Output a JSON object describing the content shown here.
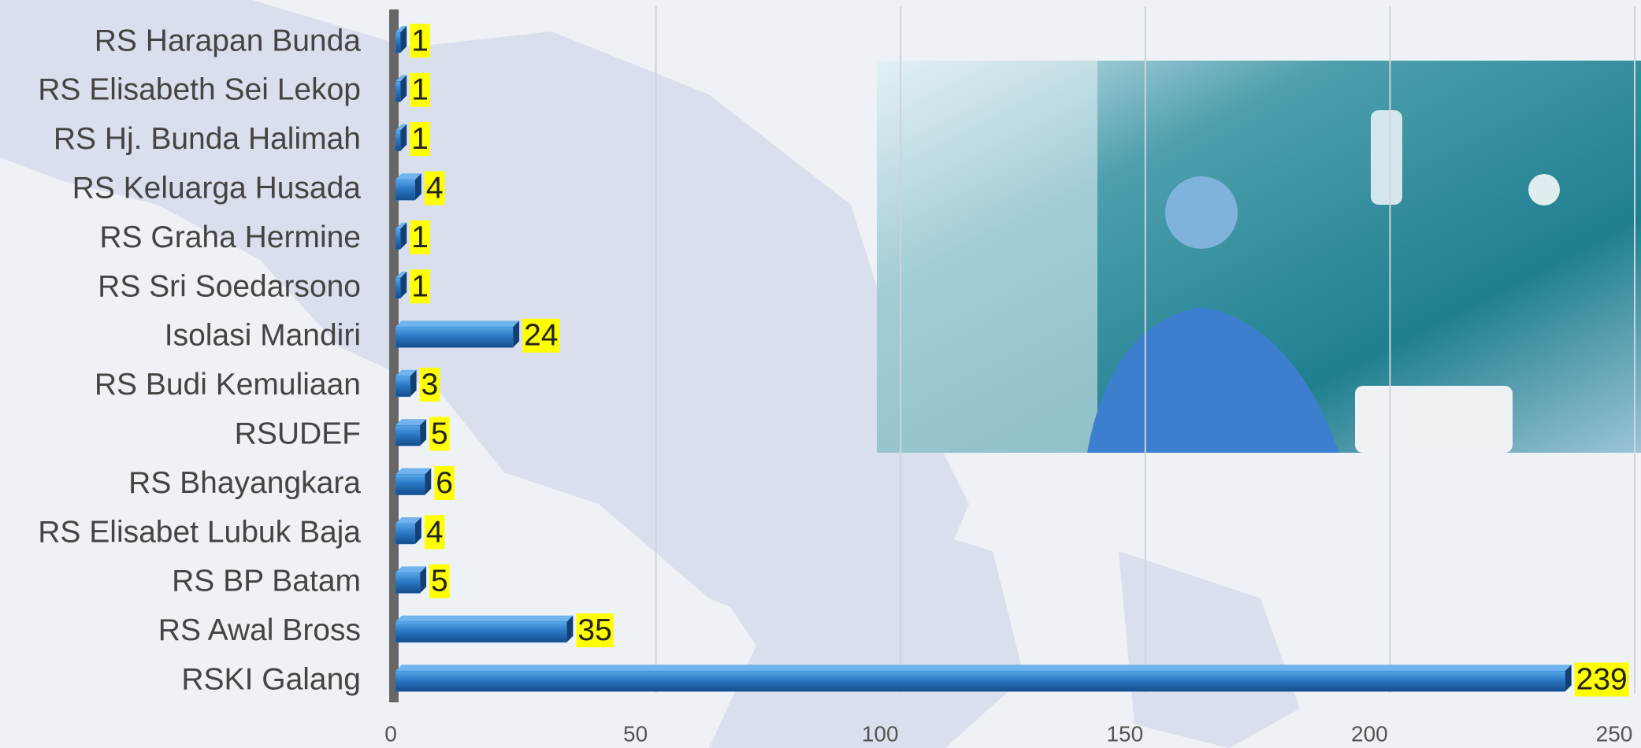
{
  "chart_data": {
    "type": "bar",
    "orientation": "horizontal",
    "categories": [
      "RS Harapan Bunda",
      "RS Elisabeth Sei Lekop",
      "RS Hj. Bunda Halimah",
      "RS Keluarga Husada",
      "RS Graha Hermine",
      "RS Sri Soedarsono",
      "Isolasi Mandiri",
      "RS Budi Kemuliaan",
      "RSUDEF",
      "RS Bhayangkara",
      "RS Elisabet Lubuk Baja",
      "RS BP Batam",
      "RS Awal Bross",
      "RSKI Galang"
    ],
    "values": [
      1,
      1,
      1,
      4,
      1,
      1,
      24,
      3,
      5,
      6,
      4,
      5,
      35,
      239
    ],
    "color": "#2a78c4",
    "label_highlight": "#ffff00",
    "xlim": [
      0,
      250
    ],
    "xticks": [
      0,
      50,
      100,
      150,
      200,
      250
    ],
    "grid": true
  }
}
